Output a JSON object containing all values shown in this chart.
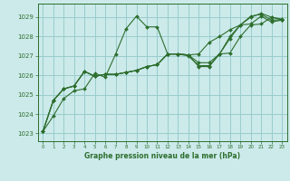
{
  "title": "Graphe pression niveau de la mer (hPa)",
  "background_color": "#cceaea",
  "grid_color": "#99cccc",
  "line_color": "#2d6e2d",
  "marker_color": "#2d6e2d",
  "xlim": [
    -0.5,
    23.5
  ],
  "ylim": [
    1022.6,
    1029.7
  ],
  "yticks": [
    1023,
    1024,
    1025,
    1026,
    1027,
    1028,
    1029
  ],
  "xticks": [
    0,
    1,
    2,
    3,
    4,
    5,
    6,
    7,
    8,
    9,
    10,
    11,
    12,
    13,
    14,
    15,
    16,
    17,
    18,
    19,
    20,
    21,
    22,
    23
  ],
  "series": [
    [
      1023.1,
      1023.9,
      1024.8,
      1025.2,
      1025.3,
      1026.1,
      1025.9,
      1027.1,
      1028.4,
      1029.05,
      1028.5,
      1028.5,
      1027.1,
      1027.1,
      1027.0,
      1026.5,
      1026.5,
      1027.1,
      1028.0,
      1028.6,
      1029.0,
      1029.2,
      1029.0,
      1028.9
    ],
    [
      1023.1,
      1024.7,
      1025.3,
      1025.45,
      1026.2,
      1025.95,
      1026.05,
      1026.05,
      1026.15,
      1026.25,
      1026.45,
      1026.55,
      1027.1,
      1027.1,
      1027.05,
      1027.1,
      1027.7,
      1028.0,
      1028.35,
      1028.6,
      1028.65,
      1029.05,
      1028.75,
      1028.85
    ],
    [
      1023.1,
      1024.7,
      1025.3,
      1025.45,
      1026.2,
      1025.95,
      1026.05,
      1026.05,
      1026.15,
      1026.25,
      1026.45,
      1026.55,
      1027.1,
      1027.1,
      1027.05,
      1026.65,
      1026.65,
      1027.1,
      1027.15,
      1028.0,
      1028.6,
      1028.65,
      1029.0,
      1028.85
    ],
    [
      1023.1,
      1024.7,
      1025.3,
      1025.45,
      1026.2,
      1025.95,
      1026.05,
      1026.05,
      1026.15,
      1026.25,
      1026.45,
      1026.55,
      1027.1,
      1027.1,
      1027.05,
      1026.45,
      1026.45,
      1027.1,
      1027.9,
      1028.6,
      1029.05,
      1029.15,
      1028.85,
      1028.85
    ]
  ]
}
